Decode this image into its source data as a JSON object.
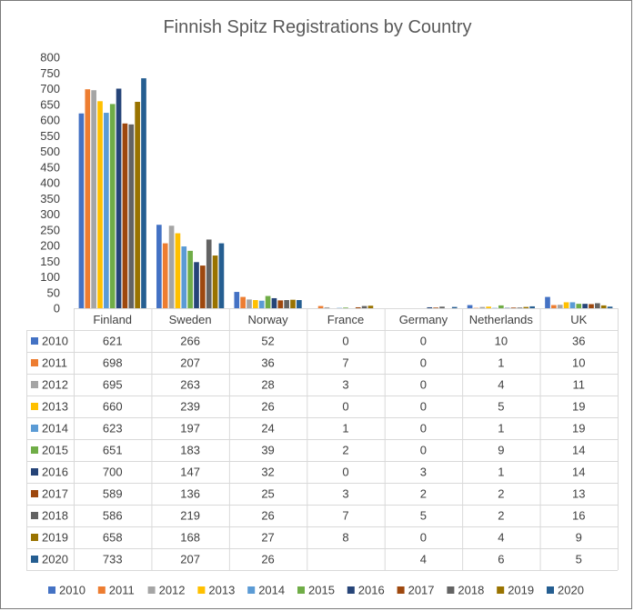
{
  "chart_data": {
    "type": "bar",
    "title": "Finnish Spitz Registrations by Country",
    "categories": [
      "Finland",
      "Sweden",
      "Norway",
      "France",
      "Germany",
      "Netherlands",
      "UK"
    ],
    "ylim": [
      0,
      800
    ],
    "yticks": [
      "0",
      "50",
      "100",
      "150",
      "200",
      "250",
      "300",
      "350",
      "400",
      "450",
      "500",
      "550",
      "600",
      "650",
      "700",
      "750",
      "800"
    ],
    "grid": false,
    "legend_position": "bottom",
    "data_table": true,
    "series": [
      {
        "name": "2010",
        "color": "#4472C4",
        "values": [
          621,
          266,
          52,
          0,
          0,
          10,
          36
        ],
        "labels": [
          "621",
          "266",
          "52",
          "0",
          "0",
          "10",
          "36"
        ]
      },
      {
        "name": "2011",
        "color": "#ED7D31",
        "values": [
          698,
          207,
          36,
          7,
          0,
          1,
          10
        ],
        "labels": [
          "698",
          "207",
          "36",
          "7",
          "0",
          "1",
          "10"
        ]
      },
      {
        "name": "2012",
        "color": "#A5A5A5",
        "values": [
          695,
          263,
          28,
          3,
          0,
          4,
          11
        ],
        "labels": [
          "695",
          "263",
          "28",
          "3",
          "0",
          "4",
          "11"
        ]
      },
      {
        "name": "2013",
        "color": "#FFC000",
        "values": [
          660,
          239,
          26,
          0,
          0,
          5,
          19
        ],
        "labels": [
          "660",
          "239",
          "26",
          "0",
          "0",
          "5",
          "19"
        ]
      },
      {
        "name": "2014",
        "color": "#5B9BD5",
        "values": [
          623,
          197,
          24,
          1,
          0,
          1,
          19
        ],
        "labels": [
          "623",
          "197",
          "24",
          "1",
          "0",
          "1",
          "19"
        ]
      },
      {
        "name": "2015",
        "color": "#70AD47",
        "values": [
          651,
          183,
          39,
          2,
          0,
          9,
          14
        ],
        "labels": [
          "651",
          "183",
          "39",
          "2",
          "0",
          "9",
          "14"
        ]
      },
      {
        "name": "2016",
        "color": "#264478",
        "values": [
          700,
          147,
          32,
          0,
          3,
          1,
          14
        ],
        "labels": [
          "700",
          "147",
          "32",
          "0",
          "3",
          "1",
          "14"
        ]
      },
      {
        "name": "2017",
        "color": "#9E480E",
        "values": [
          589,
          136,
          25,
          3,
          2,
          2,
          13
        ],
        "labels": [
          "589",
          "136",
          "25",
          "3",
          "2",
          "2",
          "13"
        ]
      },
      {
        "name": "2018",
        "color": "#636363",
        "values": [
          586,
          219,
          26,
          7,
          5,
          2,
          16
        ],
        "labels": [
          "586",
          "219",
          "26",
          "7",
          "5",
          "2",
          "16"
        ]
      },
      {
        "name": "2019",
        "color": "#997300",
        "values": [
          658,
          168,
          27,
          8,
          0,
          4,
          9
        ],
        "labels": [
          "658",
          "168",
          "27",
          "8",
          "0",
          "4",
          "9"
        ]
      },
      {
        "name": "2020",
        "color": "#255E91",
        "values": [
          733,
          207,
          26,
          null,
          4,
          6,
          5
        ],
        "labels": [
          "733",
          "207",
          "26",
          "",
          "4",
          "6",
          "5"
        ]
      }
    ]
  }
}
